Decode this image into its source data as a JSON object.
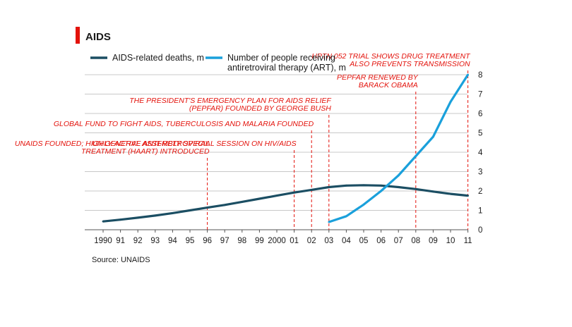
{
  "title": "AIDS",
  "source": "Source: UNAIDS",
  "colors": {
    "deaths": "#1b4e63",
    "art": "#1aa0db",
    "accent": "#e3120b",
    "grid": "#c8c8c8"
  },
  "legend": [
    {
      "lines": [
        "AIDS-related deaths, m"
      ],
      "color": "#1b4e63"
    },
    {
      "lines": [
        "Number of people receiving",
        "antiretroviral therapy (ART), m"
      ],
      "color": "#1aa0db"
    }
  ],
  "chart_data": {
    "type": "line",
    "title": "AIDS",
    "xlabel": "",
    "ylabel": "",
    "ylim": [
      0,
      8
    ],
    "yticks": [
      0,
      1,
      2,
      3,
      4,
      5,
      6,
      7,
      8
    ],
    "y_axis_side": "right",
    "grid": true,
    "legend_position": "top-left",
    "x": [
      1990,
      1991,
      1992,
      1993,
      1994,
      1995,
      1996,
      1997,
      1998,
      1999,
      2000,
      2001,
      2002,
      2003,
      2004,
      2005,
      2006,
      2007,
      2008,
      2009,
      2010,
      2011
    ],
    "xticklabels": [
      "1990",
      "91",
      "92",
      "93",
      "94",
      "95",
      "96",
      "97",
      "98",
      "99",
      "2000",
      "01",
      "02",
      "03",
      "04",
      "05",
      "06",
      "07",
      "08",
      "09",
      "10",
      "11"
    ],
    "series": [
      {
        "name": "AIDS-related deaths, m",
        "x": [
          1990,
          1991,
          1992,
          1993,
          1994,
          1995,
          1996,
          1997,
          1998,
          1999,
          2000,
          2001,
          2002,
          2003,
          2004,
          2005,
          2006,
          2007,
          2008,
          2009,
          2010,
          2011
        ],
        "values": [
          0.43,
          0.52,
          0.62,
          0.73,
          0.86,
          1.0,
          1.14,
          1.28,
          1.44,
          1.6,
          1.76,
          1.92,
          2.06,
          2.2,
          2.28,
          2.3,
          2.28,
          2.2,
          2.1,
          1.97,
          1.85,
          1.76
        ]
      },
      {
        "name": "Number of people receiving antiretroviral therapy (ART), m",
        "x": [
          2003,
          2004,
          2005,
          2006,
          2007,
          2008,
          2009,
          2010,
          2011
        ],
        "values": [
          0.4,
          0.7,
          1.3,
          2.0,
          2.8,
          3.8,
          4.8,
          6.6,
          8.0
        ]
      }
    ],
    "annotations": [
      {
        "x": 1996,
        "lines": [
          "UNAIDS FOUNDED; HIGHLY ACTIVE ANTI-RETROVIRAL",
          "TREATMENT (HAART) INTRODUCED"
        ]
      },
      {
        "x": 2001,
        "lines": [
          "UN GENERAL ASSEMBLY SPECIAL SESSION ON HIV/AIDS"
        ]
      },
      {
        "x": 2002,
        "lines": [
          "GLOBAL FUND TO FIGHT AIDS, TUBERCULOSIS AND MALARIA FOUNDED"
        ]
      },
      {
        "x": 2003,
        "lines": [
          "THE PRESIDENT'S EMERGENCY PLAN FOR AIDS RELIEF",
          "(PEPFAR) FOUNDED BY GEORGE BUSH"
        ]
      },
      {
        "x": 2008,
        "lines": [
          "PEPFAR RENEWED BY",
          "BARACK OBAMA"
        ]
      },
      {
        "x": 2011,
        "lines": [
          "HPTN 052 TRIAL SHOWS DRUG TREATMENT",
          "ALSO PREVENTS TRANSMISSION"
        ]
      }
    ]
  }
}
